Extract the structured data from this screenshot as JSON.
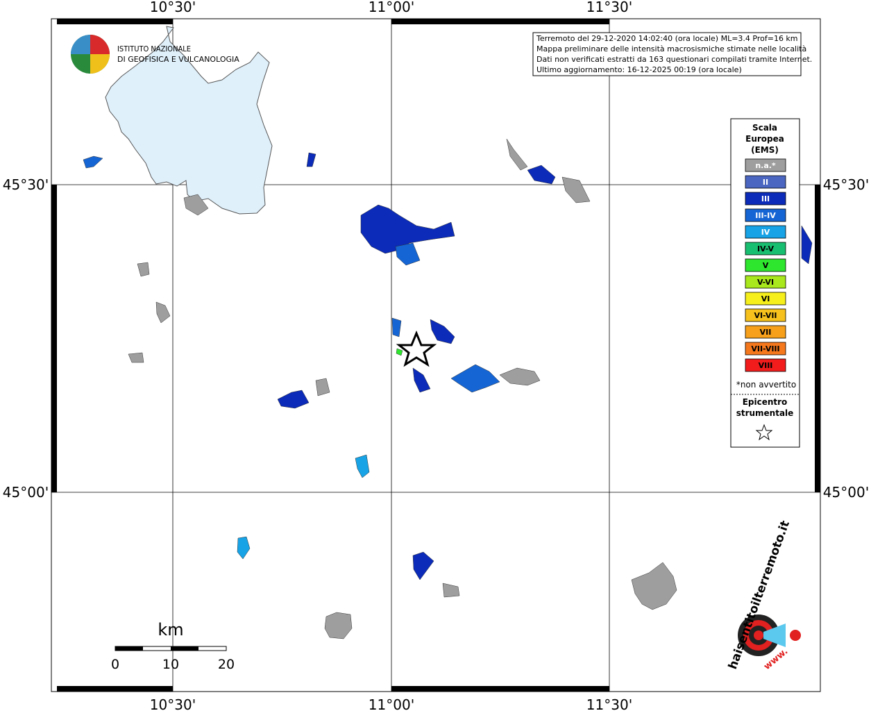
{
  "map": {
    "x_labels": [
      "10°30'",
      "11°00'",
      "11°30'"
    ],
    "y_labels": [
      "45°30'",
      "45°00'"
    ],
    "logo": {
      "line1": "ISTITUTO NAZIONALE",
      "line2": "DI GEOFISICA E VULCANOLOGIA"
    },
    "info": [
      "Terremoto del 29-12-2020 14:02:40 (ora locale) ML=3.4 Prof=16 km",
      "Mappa preliminare delle intensità macrosismiche stimate nelle località",
      "Dati non verificati estratti da 163 questionari compilati tramite Internet.",
      "Ultimo aggiornamento: 16-12-2025 00:19 (ora locale)"
    ],
    "legend": {
      "title": [
        "Scala",
        "Europea",
        "(EMS)"
      ],
      "items": [
        {
          "label": "n.a.*",
          "color": "#9e9e9e"
        },
        {
          "label": "II",
          "color": "#4a66c0"
        },
        {
          "label": "III",
          "color": "#0b2bb8"
        },
        {
          "label": "III-IV",
          "color": "#1565d4"
        },
        {
          "label": "IV",
          "color": "#17a3e6"
        },
        {
          "label": "IV-V",
          "color": "#19bf70"
        },
        {
          "label": "V",
          "color": "#2ee62e"
        },
        {
          "label": "V-VI",
          "color": "#a9e81c"
        },
        {
          "label": "VI",
          "color": "#f6ef1c"
        },
        {
          "label": "VI-VII",
          "color": "#f6c11c"
        },
        {
          "label": "VII",
          "color": "#f6a01c"
        },
        {
          "label": "VII-VIII",
          "color": "#f6781c"
        },
        {
          "label": "VIII",
          "color": "#f21c1c"
        }
      ],
      "note": "*non avvertito",
      "epicentre": [
        "Epicentro",
        "strumentale"
      ]
    },
    "scale": {
      "unit": "km",
      "ticks": [
        "0",
        "10",
        "20"
      ]
    },
    "site_logo": {
      "text": "haisentitoilterremoto.it",
      "www": "www."
    }
  }
}
